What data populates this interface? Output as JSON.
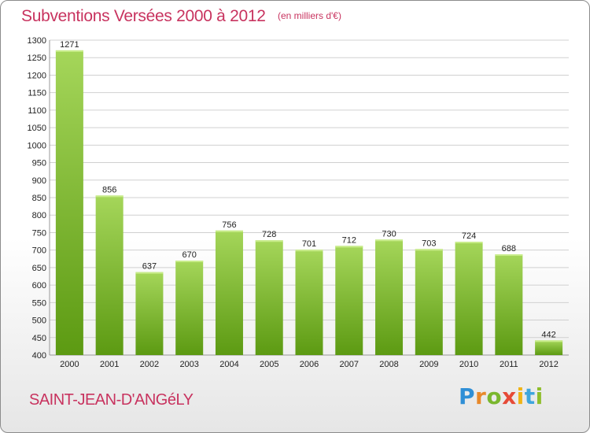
{
  "header": {
    "title": "Subventions Versées 2000 à 2012",
    "unit": "(en milliers d'€)"
  },
  "footer": {
    "city": "SAINT-JEAN-D'ANGéLY",
    "logo": [
      "P",
      "r",
      "o",
      "x",
      "i",
      "t",
      "i"
    ]
  },
  "colors": {
    "title": "#c8335f",
    "bar_light": "#a5d65a",
    "bar_dark": "#5c9a12",
    "grid": "#d0d0d0"
  },
  "chart_data": {
    "type": "bar",
    "title": "Subventions Versées 2000 à 2012",
    "xlabel": "",
    "ylabel": "",
    "ylim": [
      400,
      1300
    ],
    "yticks": [
      400,
      450,
      500,
      550,
      600,
      650,
      700,
      750,
      800,
      850,
      900,
      950,
      1000,
      1050,
      1100,
      1150,
      1200,
      1250,
      1300
    ],
    "categories": [
      "2000",
      "2001",
      "2002",
      "2003",
      "2004",
      "2005",
      "2006",
      "2007",
      "2008",
      "2009",
      "2010",
      "2011",
      "2012"
    ],
    "values": [
      1271,
      856,
      637,
      670,
      756,
      728,
      701,
      712,
      730,
      703,
      724,
      688,
      442
    ],
    "grid": true,
    "legend": "none"
  }
}
